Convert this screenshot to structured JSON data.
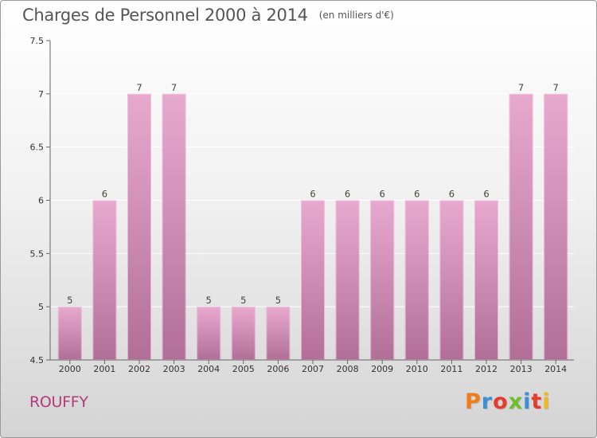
{
  "header": {
    "title": "Charges de Personnel 2000 à 2014",
    "subtitle": "(en milliers d'€)"
  },
  "footer": {
    "commune": "ROUFFY",
    "brand": "Proxiti",
    "brand_colors": [
      "#f07d1a",
      "#3a8fd6",
      "#e63c2e",
      "#6cbf2d",
      "#3a8fd6",
      "#e63c2e",
      "#f0b81a"
    ]
  },
  "colors": {
    "bar_light": "#e8a9cf",
    "bar_dark": "#b16f98",
    "axis": "#666666",
    "grid": "#ffffff",
    "commune_text": "#b23c78"
  },
  "chart_data": {
    "type": "bar",
    "categories": [
      "2000",
      "2001",
      "2002",
      "2003",
      "2004",
      "2005",
      "2006",
      "2007",
      "2008",
      "2009",
      "2010",
      "2011",
      "2012",
      "2013",
      "2014"
    ],
    "values": [
      5,
      6,
      7,
      7,
      5,
      5,
      5,
      6,
      6,
      6,
      6,
      6,
      6,
      7,
      7
    ],
    "ylim": [
      4.5,
      7.5
    ],
    "yticks": [
      "4.5",
      "5",
      "5.5",
      "6",
      "6.5",
      "7",
      "7.5"
    ],
    "grid": true,
    "xlabel": "",
    "ylabel": ""
  }
}
